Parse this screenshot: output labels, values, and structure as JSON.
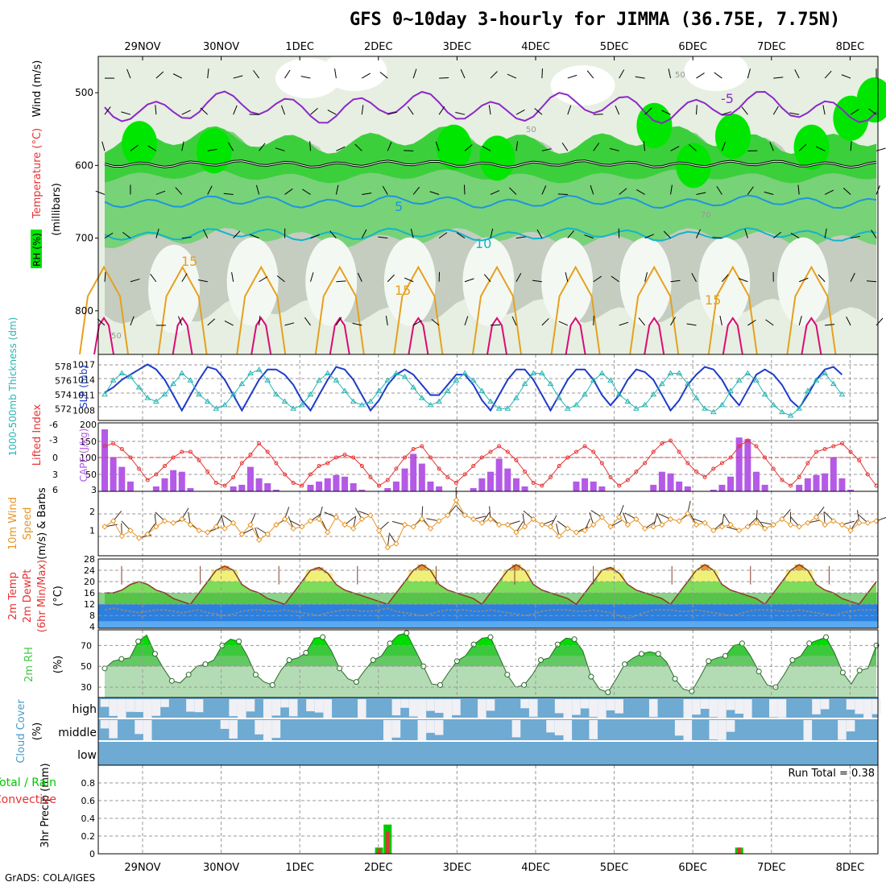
{
  "page": {
    "title": "GFS 0~10day 3-hourly for JIMMA (36.75E, 7.75N)",
    "footer": "GrADS: COLA/IGES",
    "run_total": "Run Total = 0.38"
  },
  "colors": {
    "rh_dark_green": "#00a000",
    "rh_bright_green": "#00e600",
    "rh_mid_green": "#78d278",
    "rh_pale_green": "#c8c8b4",
    "temp_purple": "#8c28c8",
    "temp_black": "#000000",
    "temp_blue": "#1e96dc",
    "temp_cyan": "#14b4c8",
    "temp_orange": "#e6a01e",
    "temp_magenta": "#dc0a78",
    "slp_blue": "#1e3cc8",
    "thickness_cyan": "#28b4b4",
    "li_red": "#e63232",
    "cape_purple": "#b45ae6",
    "wind_orange": "#e69628",
    "temp2m_fill": "#3cb43c",
    "dewpt_fill": "#3c8ce6",
    "rh2m_green": "#46c846",
    "cloud_blue": "#6eaad2",
    "cloud_white": "#f0f0f5",
    "precip_green": "#00c800",
    "precip_red": "#e63232"
  },
  "chart_data": [
    {
      "type": "heatmap",
      "panel": "upper-air",
      "ylabel_parts": [
        "RH (%)",
        "Temperature (°C)",
        "Wind (m/s)"
      ],
      "ylabel2": "(millibars)",
      "yticks": [
        500,
        600,
        700,
        800
      ],
      "ylim": [
        860,
        450
      ],
      "x_date_labels": [
        "29NOV",
        "30NOV",
        "1DEC",
        "2DEC",
        "3DEC",
        "4DEC",
        "5DEC",
        "6DEC",
        "7DEC",
        "8DEC"
      ],
      "contour_labels": [
        "-5",
        "5",
        "10",
        "15",
        "15",
        "15",
        "50",
        "50",
        "50",
        "70"
      ],
      "isotherms_degC": [
        -5,
        0,
        5,
        10,
        15,
        20
      ],
      "rh_shading_pct": [
        30,
        50,
        70,
        80,
        90
      ]
    },
    {
      "type": "line",
      "panel": "thickness-slp",
      "ylabel_left": "1000-500mb Thickness (dm)",
      "ylabel_right": "SLP (mb)",
      "yticks_left": [
        572,
        574,
        576,
        578
      ],
      "yticks_right": [
        1008,
        1011,
        1014,
        1017
      ],
      "series": [
        {
          "name": "SLP (mb)",
          "values": [
            1011.5,
            1012.5,
            1014,
            1015,
            1016,
            1017,
            1016,
            1014,
            1011,
            1008,
            1011,
            1014,
            1016.5,
            1016,
            1014,
            1011,
            1008,
            1011,
            1014,
            1016,
            1016,
            1015,
            1013,
            1010,
            1008,
            1011,
            1014,
            1016.5,
            1016,
            1014,
            1011,
            1008,
            1010,
            1013,
            1015,
            1016,
            1015,
            1013,
            1011,
            1011,
            1013,
            1015,
            1015,
            1013,
            1010,
            1008,
            1011,
            1014,
            1016,
            1016,
            1014,
            1011,
            1008,
            1011,
            1014,
            1016,
            1016,
            1014,
            1011,
            1009,
            1011,
            1014,
            1016,
            1015.5,
            1014,
            1011,
            1008,
            1010,
            1013,
            1015,
            1016.5,
            1016,
            1014,
            1011,
            1009,
            1012,
            1015,
            1016,
            1015,
            1013,
            1010,
            1008.5,
            1011,
            1014,
            1016,
            1016.5,
            1015
          ]
        },
        {
          "name": "1000-500mb Thickness (dm)",
          "values": [
            574,
            576,
            577,
            576.5,
            575,
            573.5,
            573,
            574,
            575.5,
            577,
            576,
            574,
            573,
            572,
            572.5,
            574,
            575.5,
            577,
            577.5,
            576,
            574,
            573,
            572,
            572.5,
            574,
            576,
            577,
            576,
            574.5,
            573,
            572.5,
            573,
            574.5,
            576,
            577,
            576.5,
            575,
            573.5,
            572.5,
            573,
            574.5,
            576,
            577,
            576,
            574.5,
            573,
            572,
            572,
            573.5,
            575.5,
            577,
            577,
            575.5,
            573.5,
            572,
            572.5,
            574,
            576,
            577,
            576,
            574,
            573,
            572,
            572.5,
            574,
            575.5,
            577,
            577,
            575.5,
            573.5,
            572,
            571.5,
            572.5,
            574.5,
            576,
            577,
            576,
            574,
            572.5,
            571.5,
            571,
            572,
            574.5,
            576,
            577,
            575.5,
            574
          ]
        }
      ]
    },
    {
      "type": "bar",
      "panel": "li-cape",
      "ylabel_left": "Lifted Index",
      "ylabel_right": "CAPE (J/kg)",
      "yticks_left": [
        -6,
        -3,
        0,
        3,
        6
      ],
      "yticks_right": [
        3,
        50,
        100,
        150,
        200
      ],
      "series": [
        {
          "name": "CAPE (J/kg)",
          "values": [
            190,
            105,
            75,
            30,
            0,
            0,
            15,
            40,
            65,
            60,
            10,
            0,
            0,
            0,
            0,
            15,
            20,
            75,
            40,
            25,
            5,
            0,
            0,
            0,
            20,
            30,
            40,
            50,
            45,
            25,
            5,
            0,
            0,
            10,
            30,
            70,
            115,
            85,
            30,
            15,
            0,
            0,
            0,
            10,
            40,
            60,
            100,
            70,
            40,
            15,
            0,
            0,
            0,
            0,
            0,
            30,
            40,
            30,
            15,
            0,
            0,
            0,
            0,
            0,
            20,
            60,
            55,
            30,
            15,
            0,
            0,
            5,
            20,
            45,
            165,
            160,
            60,
            20,
            0,
            0,
            0,
            20,
            40,
            50,
            55,
            105,
            40,
            5,
            0,
            0,
            0
          ]
        },
        {
          "name": "Lifted Index",
          "values": [
            -2,
            -2.5,
            -1.5,
            0,
            2,
            4,
            3,
            1.5,
            0,
            -1,
            -1,
            0.5,
            2.5,
            4.5,
            5,
            3.5,
            1,
            -0.5,
            -2.5,
            -1,
            1,
            3,
            4.5,
            5,
            3,
            1.5,
            1,
            0,
            -0.5,
            0,
            1.5,
            3.5,
            5,
            4,
            2,
            0,
            -1.5,
            -2,
            0,
            2,
            3.5,
            4.5,
            3,
            1.5,
            0,
            -1,
            -2,
            -1,
            0.5,
            2.5,
            4.5,
            5,
            3.5,
            1.5,
            0,
            -1,
            -2,
            -1,
            1,
            3.5,
            5,
            4,
            2.5,
            1,
            -1,
            -2.5,
            -3,
            -1,
            1,
            2.5,
            3.5,
            2,
            1,
            0,
            -2,
            -3,
            -2,
            0,
            2,
            4,
            5,
            3.5,
            1,
            -1,
            -1.5,
            -2,
            -2.5,
            -1,
            0.5,
            3,
            5
          ]
        }
      ]
    },
    {
      "type": "line",
      "panel": "wind10m",
      "ylabel": "10m Wind Speed (m/s) & Barbs",
      "yticks": [
        1,
        2
      ],
      "series": [
        {
          "name": "10m Wind Speed",
          "values": [
            1.2,
            1.5,
            0.7,
            1,
            0.6,
            0.8,
            1.2,
            1.5,
            1.4,
            1.6,
            1.3,
            1,
            0.9,
            1.2,
            1.1,
            1.4,
            0.8,
            1.3,
            0.5,
            0.8,
            1.3,
            1.6,
            1.1,
            1.2,
            1.5,
            1.6,
            0.9,
            1.7,
            1.3,
            1.1,
            1.6,
            1.8,
            1,
            0.1,
            0.3,
            1.3,
            1.2,
            1.6,
            1.1,
            1.5,
            1.8,
            2.6,
            1.8,
            1.6,
            1.4,
            1.6,
            1.3,
            1.3,
            0.9,
            1.2,
            1.6,
            1.3,
            1.2,
            0.7,
            1.1,
            0.9,
            1,
            1.3,
            1.7,
            1.2,
            1.7,
            1.3,
            1.6,
            1.1,
            1.2,
            1.3,
            1.6,
            1.5,
            1.9,
            1.3,
            1.4,
            1,
            1.2,
            1.3,
            1,
            1.2,
            1.4,
            1.1,
            1.3,
            1.6,
            1.3,
            1.2,
            1.4,
            1.7,
            1.3,
            1.5,
            1.3,
            1,
            1.4,
            1.4,
            1.5
          ]
        }
      ]
    },
    {
      "type": "area",
      "panel": "temp2m",
      "ylabel": "2m Temp 2m DewPt (6hr Min/Max) (°C)",
      "yticks": [
        4,
        8,
        12,
        16,
        20,
        24,
        28
      ],
      "ylim": [
        3.5,
        28
      ],
      "series": [
        {
          "name": "2m Temp",
          "values": [
            16,
            16,
            17,
            19,
            20,
            19,
            17,
            16,
            14,
            13,
            12,
            16,
            20,
            24,
            25.5,
            24,
            19,
            17,
            16,
            14,
            13,
            12,
            16,
            20,
            24,
            25,
            23,
            19,
            17,
            16,
            15,
            14,
            13,
            12,
            16,
            20,
            24,
            26,
            24,
            19,
            17,
            16,
            15,
            14,
            12,
            16,
            20,
            24,
            26,
            24,
            19,
            17,
            16,
            15,
            14,
            12,
            16,
            20,
            24,
            25,
            23,
            19,
            17,
            16,
            15,
            14,
            12,
            16,
            20,
            24,
            26,
            24,
            19,
            17,
            16,
            15,
            14,
            12,
            16,
            20,
            24,
            26,
            24,
            19,
            17,
            16,
            14,
            13,
            12,
            16,
            20
          ]
        },
        {
          "name": "2m DewPt",
          "values": [
            10,
            10.5,
            10,
            9.5,
            9,
            9.5,
            10,
            10,
            9.5,
            9,
            9.5,
            10,
            9,
            8.5,
            8,
            8.5,
            9.5,
            10,
            10,
            9.5,
            9.5,
            10,
            9.5,
            9,
            8.5,
            8,
            9,
            9.5,
            10,
            10,
            9.5,
            9.5,
            10,
            10.5,
            9.5,
            9,
            8.5,
            8,
            8.5,
            9.5,
            10,
            10,
            10,
            9.5,
            9.5,
            10,
            9.5,
            9,
            8.5,
            8,
            8.5,
            9.5,
            10,
            10,
            10,
            9.5,
            9.5,
            10,
            9.5,
            9,
            8,
            7,
            8,
            9,
            10,
            10,
            10,
            9.5,
            9.5,
            10,
            9.5,
            9,
            8.5,
            8,
            8.5,
            9.5,
            10,
            10,
            10,
            9.5,
            9.5,
            10,
            9.5,
            9,
            8.5,
            8,
            9,
            9.5,
            10,
            10,
            10
          ]
        }
      ]
    },
    {
      "type": "area",
      "panel": "rh2m",
      "ylabel": "2m RH (%)",
      "yticks": [
        30,
        50,
        70
      ],
      "ylim": [
        20,
        85
      ],
      "series": [
        {
          "name": "2m RH",
          "values": [
            48,
            55,
            57,
            58,
            74,
            80,
            62,
            48,
            36,
            34,
            42,
            50,
            52,
            56,
            70,
            76,
            74,
            60,
            42,
            35,
            32,
            46,
            56,
            58,
            63,
            77,
            78,
            65,
            48,
            38,
            35,
            46,
            56,
            60,
            72,
            80,
            82,
            66,
            50,
            33,
            32,
            44,
            55,
            60,
            71,
            77,
            78,
            60,
            42,
            30,
            32,
            42,
            56,
            58,
            71,
            77,
            76,
            65,
            40,
            28,
            25,
            38,
            52,
            58,
            62,
            64,
            62,
            54,
            38,
            28,
            26,
            40,
            55,
            58,
            60,
            70,
            72,
            60,
            45,
            32,
            30,
            42,
            56,
            60,
            72,
            75,
            78,
            63,
            44,
            33,
            46,
            48,
            70
          ]
        }
      ]
    },
    {
      "type": "heatmap",
      "panel": "cloud-cover",
      "ylabel": "Cloud Cover (%)",
      "rows": [
        "high",
        "middle",
        "low"
      ]
    },
    {
      "type": "bar",
      "panel": "precip",
      "ylabel": "3hr Precip (mm)",
      "legend": [
        "Total / Rain",
        "Convective"
      ],
      "yticks": [
        0,
        0.2,
        0.4,
        0.6,
        0.8
      ],
      "ylim": [
        0,
        1.0
      ],
      "series": [
        {
          "name": "Total / Rain",
          "values": [
            0,
            0,
            0,
            0,
            0,
            0,
            0,
            0,
            0,
            0,
            0,
            0,
            0,
            0,
            0,
            0,
            0,
            0,
            0,
            0,
            0,
            0,
            0,
            0,
            0,
            0,
            0,
            0,
            0,
            0,
            0,
            0,
            0.07,
            0.33,
            0,
            0,
            0,
            0,
            0,
            0,
            0,
            0,
            0,
            0,
            0,
            0,
            0,
            0,
            0,
            0,
            0,
            0,
            0,
            0,
            0,
            0,
            0,
            0,
            0,
            0,
            0,
            0,
            0,
            0,
            0,
            0,
            0,
            0,
            0,
            0,
            0,
            0,
            0,
            0,
            0.07,
            0,
            0,
            0,
            0,
            0,
            0,
            0,
            0,
            0,
            0,
            0,
            0,
            0,
            0
          ]
        },
        {
          "name": "Convective",
          "values": [
            0,
            0,
            0,
            0,
            0,
            0,
            0,
            0,
            0,
            0,
            0,
            0,
            0,
            0,
            0,
            0,
            0,
            0,
            0,
            0,
            0,
            0,
            0,
            0,
            0,
            0,
            0,
            0,
            0,
            0,
            0,
            0,
            0.06,
            0.25,
            0,
            0,
            0,
            0,
            0,
            0,
            0,
            0,
            0,
            0,
            0,
            0,
            0,
            0,
            0,
            0,
            0,
            0,
            0,
            0,
            0,
            0,
            0,
            0,
            0,
            0,
            0,
            0,
            0,
            0,
            0,
            0,
            0,
            0,
            0,
            0,
            0,
            0,
            0,
            0,
            0.07,
            0,
            0,
            0,
            0,
            0,
            0,
            0,
            0,
            0,
            0,
            0,
            0,
            0,
            0
          ]
        }
      ]
    }
  ]
}
